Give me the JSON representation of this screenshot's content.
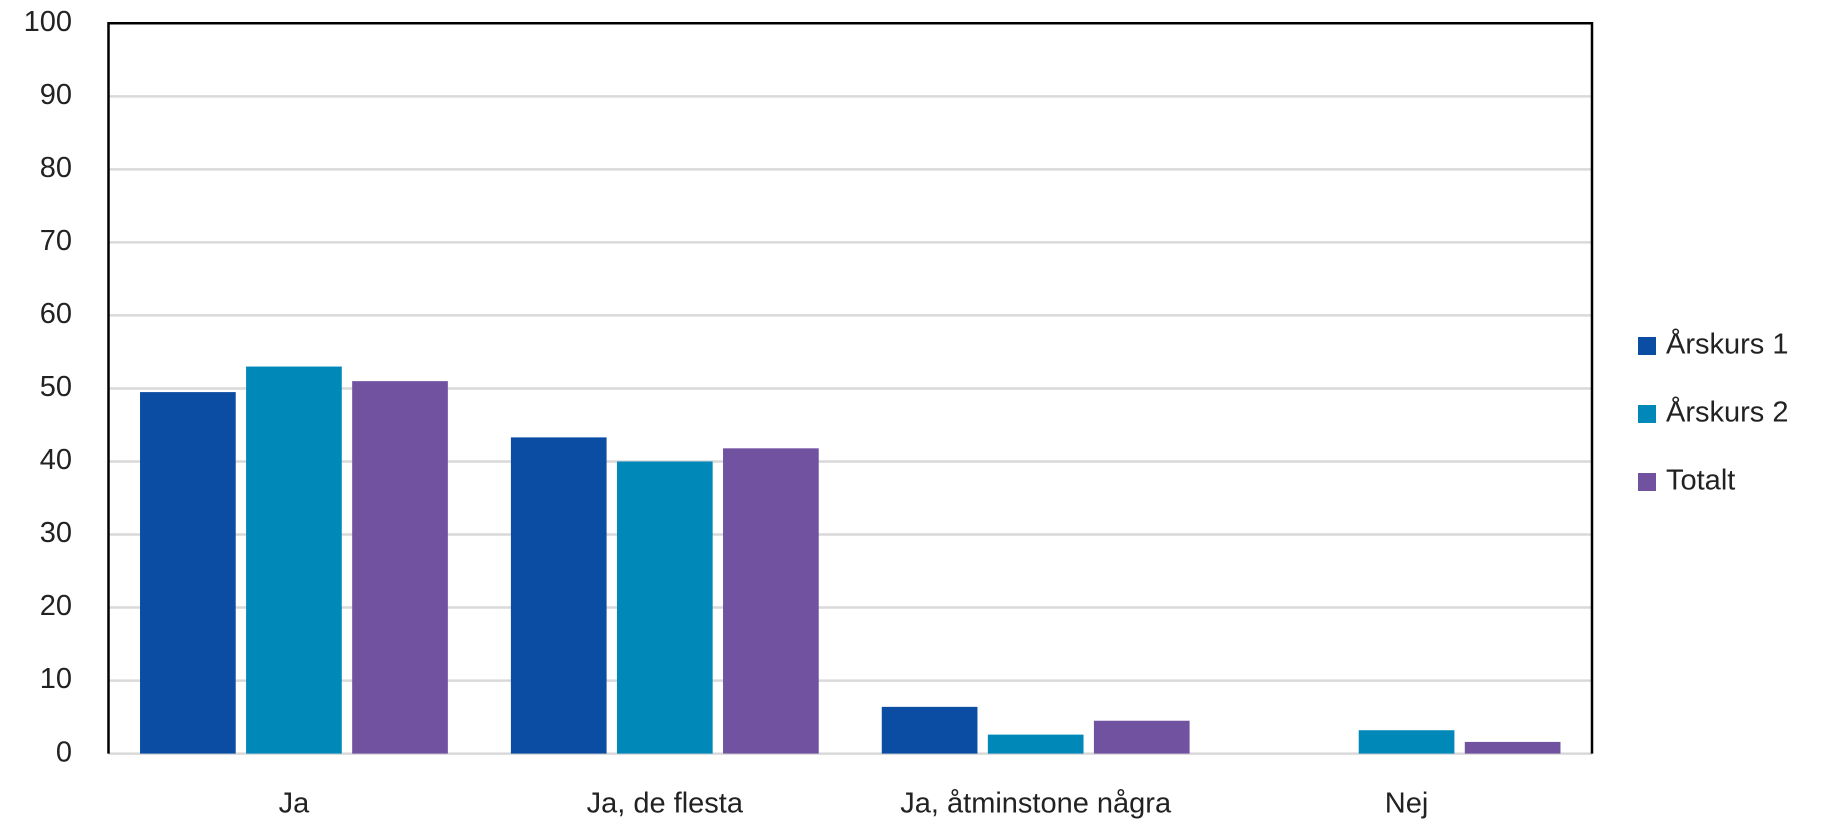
{
  "chart_data": {
    "type": "bar",
    "categories": [
      "Ja",
      "Ja, de flesta",
      "Ja, åtminstone några",
      "Nej"
    ],
    "series": [
      {
        "name": "Årskurs 1",
        "color": "#0a4da2",
        "values": [
          49.5,
          43.3,
          6.4,
          0
        ]
      },
      {
        "name": "Årskurs 2",
        "color": "#0088b8",
        "values": [
          53,
          40,
          2.6,
          3.2
        ]
      },
      {
        "name": "Totalt",
        "color": "#7052a0",
        "values": [
          51,
          41.8,
          4.5,
          1.6
        ]
      }
    ],
    "ylim": [
      0,
      100
    ],
    "yticks": [
      0,
      10,
      20,
      30,
      40,
      50,
      60,
      70,
      80,
      90,
      100
    ],
    "grid": true,
    "legend": "right"
  }
}
